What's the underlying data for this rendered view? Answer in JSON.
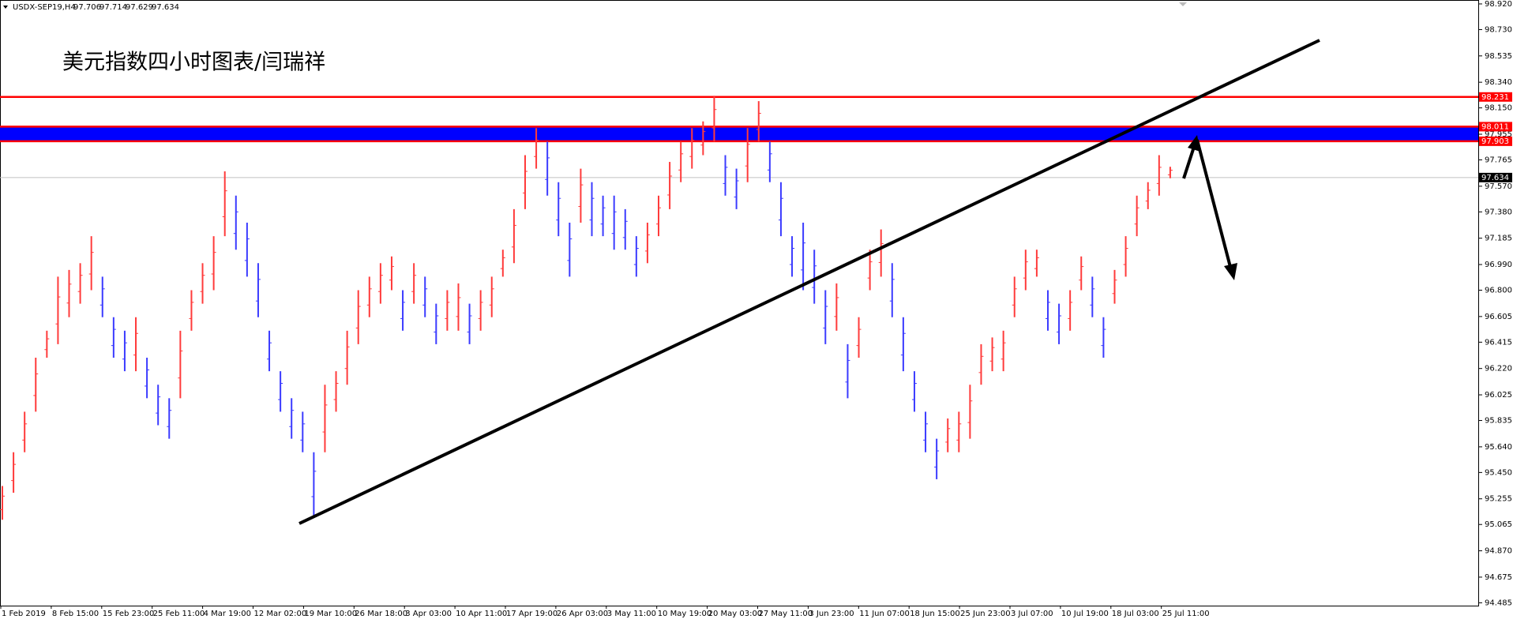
{
  "chart_data": {
    "type": "range",
    "symbol": "USDX-SEP19,H4",
    "quote": {
      "open": 97.706,
      "high": 97.714,
      "low": 97.629,
      "close": 97.634
    },
    "title": "美元指数四小时图表/闫瑞祥",
    "categories": [
      "1 Feb 2019",
      "8 Feb 15:00",
      "15 Feb 23:00",
      "25 Feb 11:00",
      "4 Mar 19:00",
      "12 Mar 02:00",
      "19 Mar 10:00",
      "26 Mar 18:00",
      "3 Apr 03:00",
      "10 Apr 11:00",
      "17 Apr 19:00",
      "26 Apr 03:00",
      "3 May 11:00",
      "10 May 19:00",
      "20 May 03:00",
      "27 May 11:00",
      "3 Jun 23:00",
      "11 Jun 07:00",
      "18 Jun 15:00",
      "25 Jun 23:00",
      "3 Jul 07:00",
      "10 Jul 19:00",
      "18 Jul 03:00",
      "25 Jul 11:00"
    ],
    "up_color": "#ff3b3b",
    "down_color": "#3b3bff",
    "low": [
      95.1,
      95.3,
      95.6,
      95.9,
      96.3,
      96.4,
      96.6,
      96.7,
      96.8,
      96.6,
      96.3,
      96.2,
      96.2,
      96.0,
      95.8,
      95.7,
      96.0,
      96.5,
      96.7,
      96.8,
      97.2,
      97.1,
      96.9,
      96.6,
      96.2,
      95.9,
      95.7,
      95.6,
      95.13,
      95.6,
      95.9,
      96.1,
      96.4,
      96.6,
      96.7,
      96.8,
      96.5,
      96.7,
      96.6,
      96.4,
      96.5,
      96.5,
      96.4,
      96.5,
      96.6,
      96.9,
      97.0,
      97.4,
      97.7,
      97.5,
      97.2,
      96.9,
      97.3,
      97.2,
      97.2,
      97.1,
      97.1,
      96.9,
      97.0,
      97.2,
      97.4,
      97.6,
      97.7,
      97.8,
      97.9,
      97.5,
      97.4,
      97.6,
      97.9,
      97.6,
      97.2,
      96.9,
      96.8,
      96.7,
      96.4,
      96.5,
      96.0,
      96.3,
      96.8,
      96.9,
      96.6,
      96.2,
      95.9,
      95.6,
      95.4,
      95.6,
      95.6,
      95.7,
      96.1,
      96.2,
      96.2,
      96.6,
      96.8,
      96.9,
      96.5,
      96.4,
      96.5,
      96.8,
      96.6,
      96.3,
      96.7,
      96.9,
      97.2,
      97.4,
      97.5,
      97.629
    ],
    "high": [
      95.35,
      95.6,
      95.9,
      96.3,
      96.5,
      96.9,
      96.95,
      97.0,
      97.2,
      96.9,
      96.6,
      96.5,
      96.6,
      96.3,
      96.1,
      96.0,
      96.5,
      96.8,
      97.0,
      97.2,
      97.68,
      97.5,
      97.3,
      97.0,
      96.5,
      96.2,
      96.0,
      95.9,
      95.6,
      96.1,
      96.2,
      96.5,
      96.8,
      96.9,
      97.0,
      97.05,
      96.8,
      97.0,
      96.9,
      96.7,
      96.8,
      96.85,
      96.7,
      96.8,
      96.9,
      97.1,
      97.4,
      97.8,
      98.0,
      97.9,
      97.6,
      97.3,
      97.7,
      97.6,
      97.5,
      97.5,
      97.4,
      97.2,
      97.3,
      97.5,
      97.75,
      97.9,
      98.0,
      98.05,
      98.24,
      97.8,
      97.7,
      98.0,
      98.2,
      97.9,
      97.6,
      97.2,
      97.3,
      97.1,
      96.8,
      96.85,
      96.4,
      96.6,
      97.1,
      97.25,
      97.0,
      96.6,
      96.2,
      95.9,
      95.7,
      95.85,
      95.9,
      96.1,
      96.4,
      96.45,
      96.5,
      96.9,
      97.1,
      97.1,
      96.8,
      96.7,
      96.8,
      97.05,
      96.9,
      96.6,
      96.95,
      97.2,
      97.5,
      97.6,
      97.8,
      97.714
    ],
    "resistance": {
      "value": 98.231,
      "color": "#ff0000"
    },
    "band": {
      "low": 97.903,
      "high": 98.011,
      "color": "#0000ff",
      "edge_color": "#ff0000"
    },
    "current": {
      "value": 97.634,
      "color": "#c0c0c0"
    },
    "ylim": [
      94.464,
      98.949
    ],
    "yticks": [
      {
        "value": 98.92,
        "label": "98.920"
      },
      {
        "value": 98.73,
        "label": "98.730"
      },
      98.535,
      {
        "value": 98.34,
        "label": "98.340"
      },
      {
        "value": 98.15,
        "label": "98.150"
      },
      97.955,
      97.765,
      {
        "value": 97.57,
        "label": "97.570"
      },
      {
        "value": 97.38,
        "label": "97.380"
      },
      97.185,
      {
        "value": 96.99,
        "label": "96.990"
      },
      {
        "value": 96.8,
        "label": "96.800"
      },
      96.605,
      96.415,
      {
        "value": 96.22,
        "label": "96.220"
      },
      96.025,
      95.835,
      {
        "value": 95.64,
        "label": "95.640"
      },
      {
        "value": 95.45,
        "label": "95.450"
      },
      95.255,
      95.065,
      {
        "value": 94.87,
        "label": "94.870"
      },
      94.675,
      94.485
    ]
  }
}
